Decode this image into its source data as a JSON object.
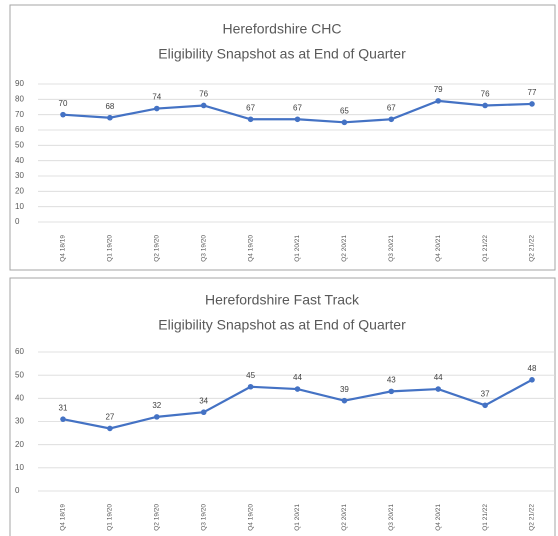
{
  "chart_data": [
    {
      "type": "line",
      "title": "Herefordshire CHC",
      "subtitle": "Eligibility Snapshot as at End of Quarter",
      "categories": [
        "Q4 18/19",
        "Q1 19/20",
        "Q2 19/20",
        "Q3 19/20",
        "Q4 19/20",
        "Q1 20/21",
        "Q2 20/21",
        "Q3 20/21",
        "Q4 20/21",
        "Q1 21/22",
        "Q2 21/22"
      ],
      "series": [
        {
          "color": "#4472c4",
          "values": [
            70,
            68,
            74,
            76,
            67,
            67,
            65,
            67,
            79,
            76,
            77
          ]
        }
      ],
      "ylim": [
        0,
        90
      ],
      "yticks": [
        0,
        10,
        20,
        30,
        40,
        50,
        60,
        70,
        80,
        90
      ],
      "grid": true
    },
    {
      "type": "line",
      "title": "Herefordshire Fast Track",
      "subtitle": "Eligibility Snapshot as at End of Quarter",
      "categories": [
        "Q4 18/19",
        "Q1 19/20",
        "Q2 19/20",
        "Q3 19/20",
        "Q4 19/20",
        "Q1 20/21",
        "Q2 20/21",
        "Q3 20/21",
        "Q4 20/21",
        "Q1 21/22",
        "Q2 21/22"
      ],
      "series": [
        {
          "color": "#4472c4",
          "values": [
            31,
            27,
            32,
            34,
            45,
            44,
            39,
            43,
            44,
            37,
            48
          ]
        }
      ],
      "ylim": [
        0,
        60
      ],
      "yticks": [
        0,
        10,
        20,
        30,
        40,
        50,
        60
      ],
      "grid": true
    }
  ]
}
